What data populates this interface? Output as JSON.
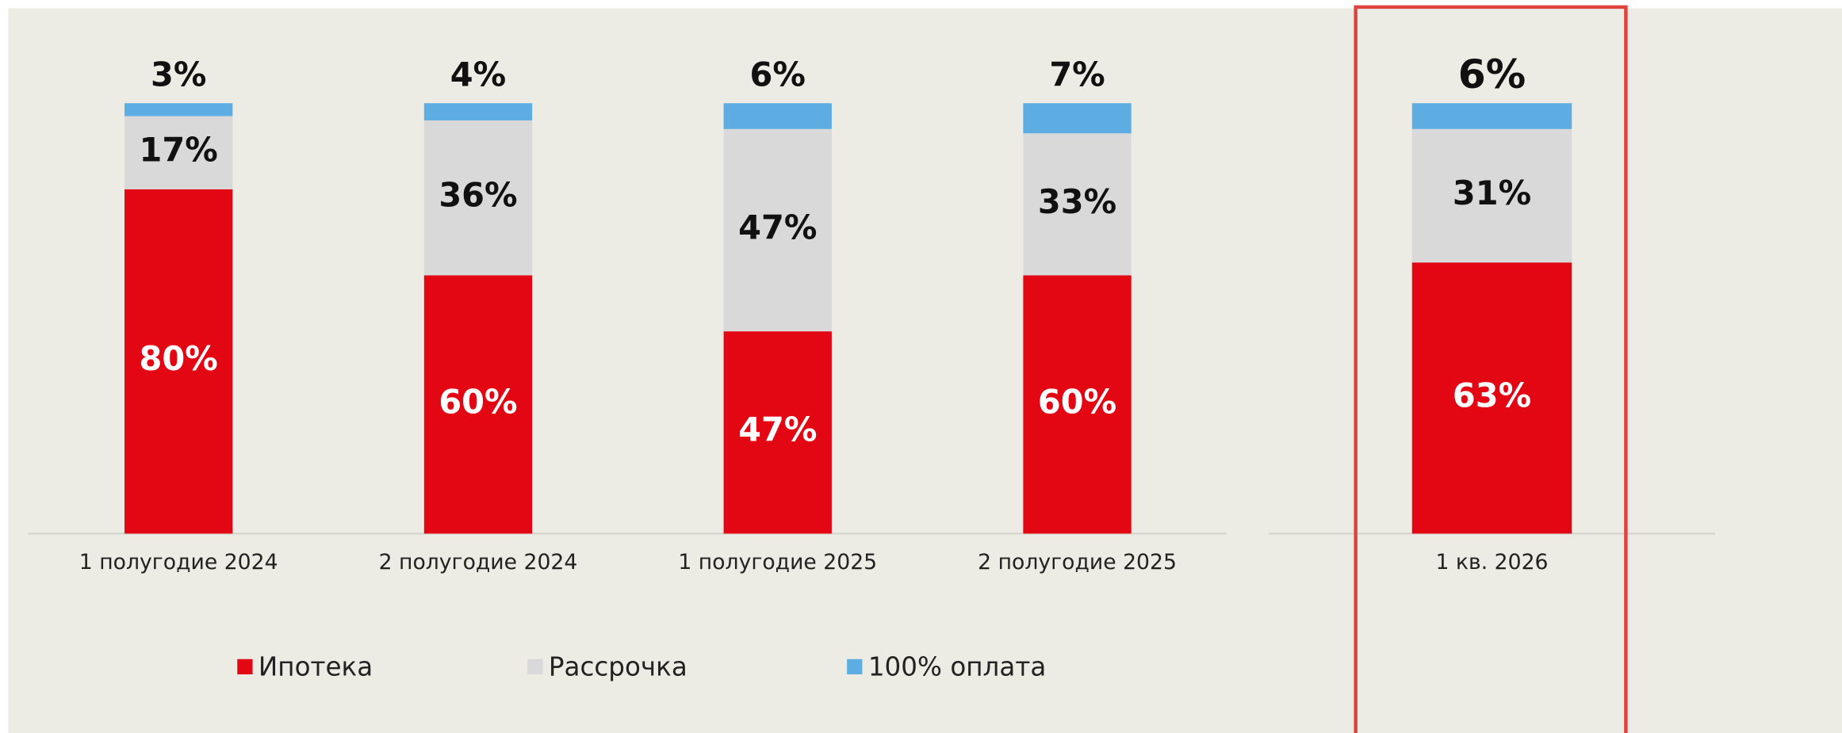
{
  "chart_data": [
    {
      "type": "stacked_bar",
      "categories": [
        "1 полугодие 2024",
        "2 полугодие 2024",
        "1 полугодие 2025",
        "2 полугодие 2025"
      ],
      "ylim": [
        0,
        100
      ],
      "legend": "bottom",
      "series": [
        {
          "name": "Ипотека",
          "color": "#e30613",
          "values": [
            80,
            60,
            47,
            60
          ],
          "value_labels": [
            "80%",
            "60%",
            "47%",
            "60%"
          ]
        },
        {
          "name": "Рассрочка",
          "color": "#d9d9d9",
          "values": [
            17,
            36,
            47,
            33
          ],
          "value_labels": [
            "17%",
            "36%",
            "47%",
            "33%"
          ]
        },
        {
          "name": "100% оплата",
          "color": "#5dade2",
          "values": [
            3,
            4,
            6,
            7
          ],
          "value_labels": [
            "3%",
            "4%",
            "6%",
            "7%"
          ]
        }
      ]
    },
    {
      "type": "stacked_bar",
      "categories": [
        "1 кв. 2026"
      ],
      "ylim": [
        0,
        100
      ],
      "highlight": true,
      "series": [
        {
          "color": "#e30613",
          "values": [
            63
          ],
          "value_labels": [
            "63%"
          ]
        },
        {
          "color": "#d9d9d9",
          "values": [
            31
          ],
          "value_labels": [
            "31%"
          ]
        },
        {
          "color": "#5dade2",
          "values": [
            6
          ],
          "value_labels": [
            "6%"
          ]
        }
      ]
    }
  ]
}
